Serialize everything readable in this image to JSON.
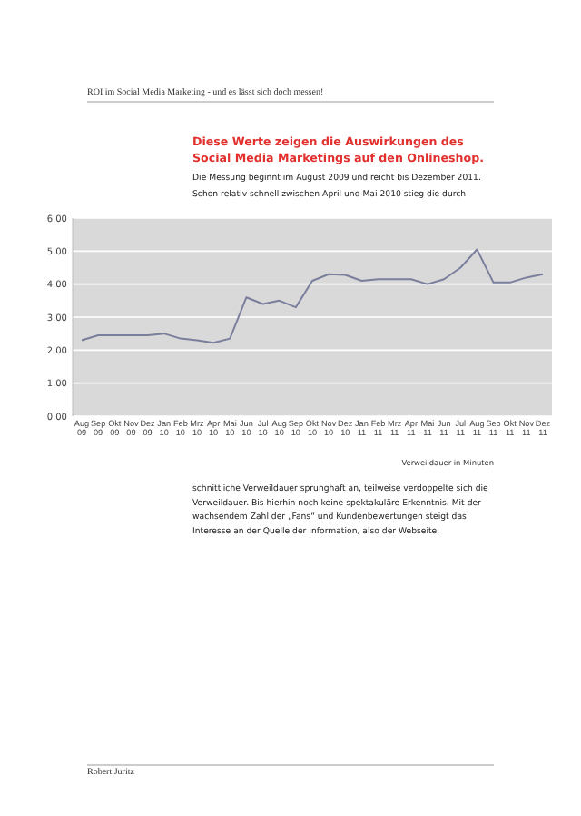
{
  "chart_data": {
    "type": "line",
    "title": "Diese Werte zeigen die Auswirkungen des Social Media Marketings auf den Onlineshop.",
    "categories": [
      "Aug 09",
      "Sep 09",
      "Okt 09",
      "Nov 09",
      "Dez 09",
      "Jan 10",
      "Feb 10",
      "Mrz 10",
      "Apr 10",
      "Mai 10",
      "Jun 10",
      "Jul 10",
      "Aug 10",
      "Sep 10",
      "Okt 10",
      "Nov 10",
      "Dez 10",
      "Jan 11",
      "Feb 11",
      "Mrz 11",
      "Apr 11",
      "Mai 11",
      "Jun 11",
      "Jul 11",
      "Aug 11",
      "Sep 11",
      "Okt 11",
      "Nov 11",
      "Dez 11"
    ],
    "series": [
      {
        "color": "#7a7f9c",
        "values": [
          2.3,
          2.45,
          2.45,
          2.45,
          2.45,
          2.5,
          2.35,
          2.3,
          2.22,
          2.35,
          3.6,
          3.4,
          3.5,
          3.3,
          4.1,
          4.3,
          4.28,
          4.1,
          4.15,
          4.15,
          4.15,
          4.0,
          4.15,
          4.5,
          5.05,
          4.05,
          4.05,
          4.2,
          4.3
        ]
      }
    ],
    "ylim": [
      0,
      6
    ],
    "yticks": [
      {
        "value": 0,
        "label": "0.00"
      },
      {
        "value": 1,
        "label": "1.00"
      },
      {
        "value": 2,
        "label": "2.00"
      },
      {
        "value": 3,
        "label": "3.00"
      },
      {
        "value": 4,
        "label": "4.00"
      },
      {
        "value": 5,
        "label": "5.00"
      },
      {
        "value": 6,
        "label": "6.00"
      }
    ],
    "grid": "y",
    "marker": "none",
    "line_style": "solid",
    "annotations": [
      "ROI im Social Media Marketing - und es lässt sich doch messen!",
      "Die Messung beginnt im August 2009 und reicht bis Dezember 2011. Schon relativ schnell zwischen April und Mai 2010 stieg die durch-",
      "Verweildauer in Minuten",
      "schnittliche Verweildauer sprunghaft an, teilweise verdoppelte sich die Verweildauer. Bis hierhin noch keine spektakuläre Erkenntnis. Mit der wachsendem Zahl der „Fans“ und Kundenbewertungen steigt das Interesse an der Quelle der Information, also der Webseite.",
      "Robert Juritz"
    ]
  }
}
